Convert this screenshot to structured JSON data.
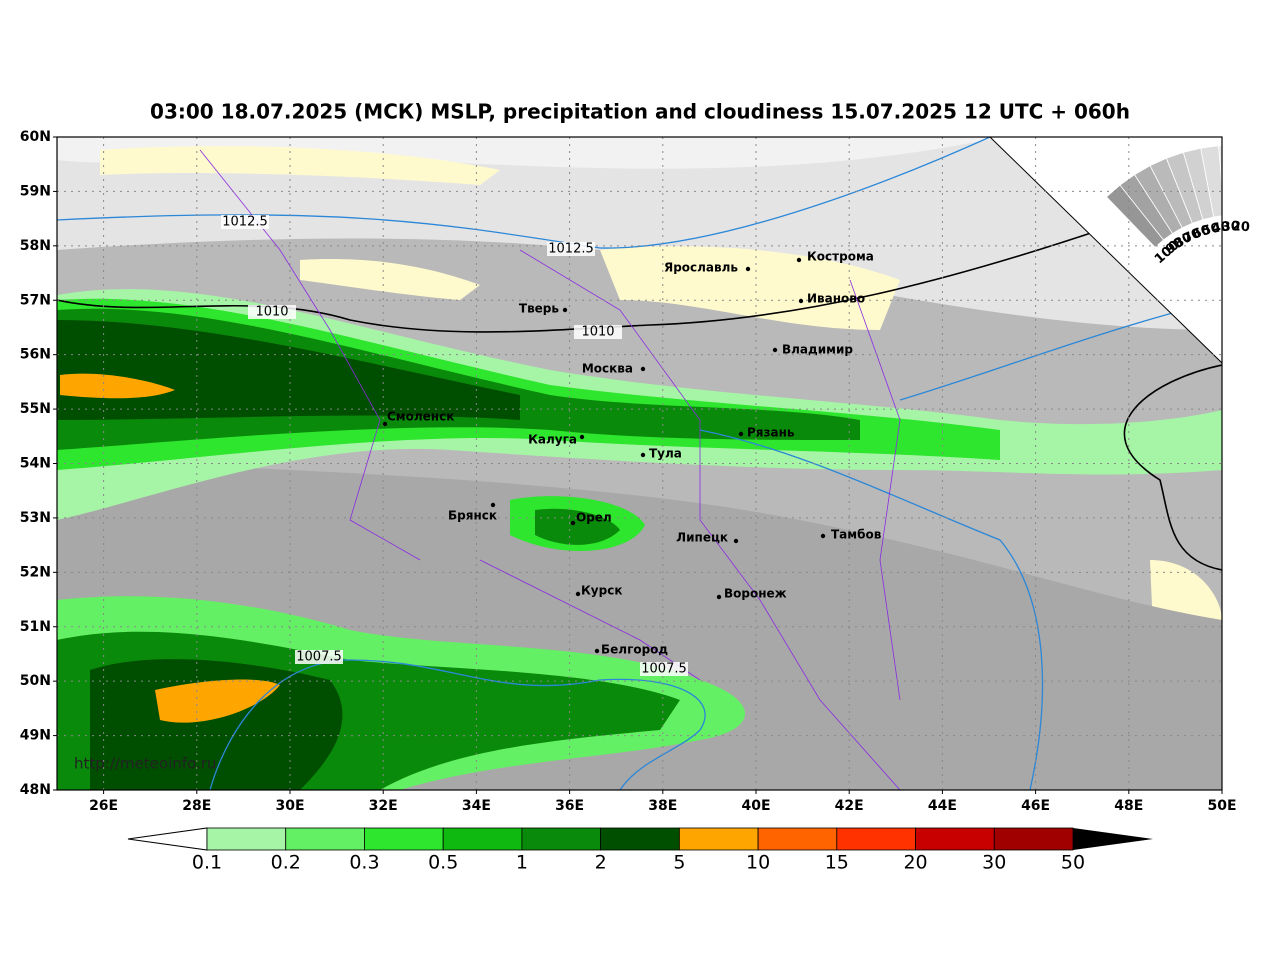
{
  "title": "03:00 18.07.2025 (МСК) MSLP, precipitation and cloudiness 15.07.2025 12 UTC + 060h",
  "lat_labels": [
    "60N",
    "59N",
    "58N",
    "57N",
    "56N",
    "55N",
    "54N",
    "53N",
    "52N",
    "51N",
    "50N",
    "49N",
    "48N"
  ],
  "lon_labels": [
    "26E",
    "28E",
    "30E",
    "32E",
    "34E",
    "36E",
    "38E",
    "40E",
    "42E",
    "44E",
    "46E",
    "48E",
    "50E"
  ],
  "cities": [
    "Кострома",
    "Ярославль",
    "Иваново",
    "Тверь",
    "Владимир",
    "Москва",
    "Смоленск",
    "Калуга",
    "Рязань",
    "Тула",
    "Брянск",
    "Орел",
    "Липецк",
    "Тамбов",
    "Курск",
    "Воронеж",
    "Белгород"
  ],
  "isobar_labels": [
    "1012.5",
    "1012.5",
    "1010",
    "1010",
    "1007.5",
    "1007.5"
  ],
  "cloud_scale": [
    "100",
    "90",
    "80",
    "70",
    "60",
    "50",
    "40",
    "30",
    "20"
  ],
  "colorbar": {
    "labels": [
      "0.1",
      "0.2",
      "0.3",
      "0.5",
      "1",
      "2",
      "5",
      "10",
      "15",
      "20",
      "30",
      "50"
    ],
    "colors": [
      "#a6f5a6",
      "#64f064",
      "#2ee62e",
      "#10b910",
      "#0a8a0a",
      "#004f00",
      "#ffa500",
      "#ff6400",
      "#ff3200",
      "#c80000",
      "#a00000"
    ]
  },
  "watermark": "http://meteoinfo.ru"
}
